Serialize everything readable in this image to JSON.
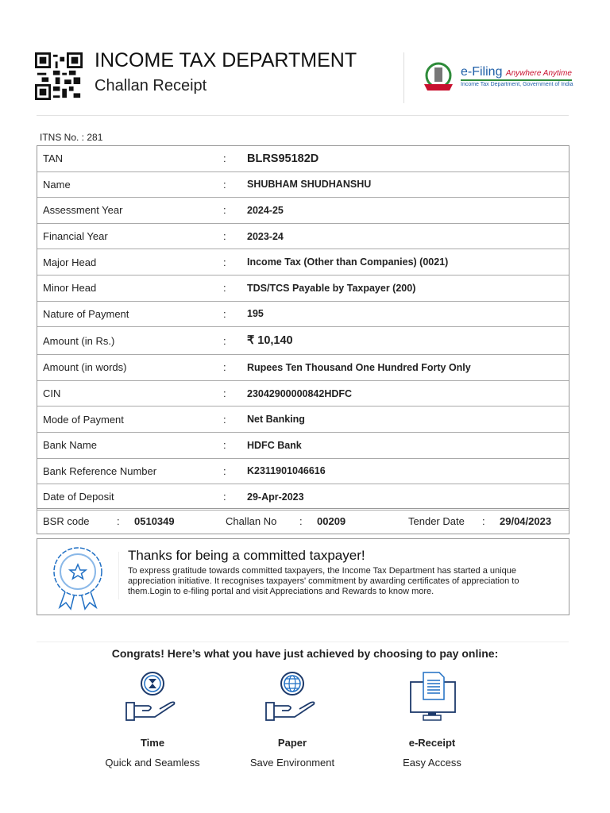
{
  "header": {
    "title": "INCOME TAX DEPARTMENT",
    "subtitle": "Challan Receipt",
    "logo_text": "e-Filing Anywhere Anytime",
    "logo_subtext": "Income Tax Department, Government of India"
  },
  "itns": "ITNS No. : 281",
  "rows": [
    {
      "label": "TAN",
      "value": "BLRS95182D"
    },
    {
      "label": "Name",
      "value": "SHUBHAM SHUDHANSHU"
    },
    {
      "label": "Assessment Year",
      "value": "2024-25"
    },
    {
      "label": "Financial Year",
      "value": "2023-24"
    },
    {
      "label": "Major Head",
      "value": "Income Tax (Other than Companies) (0021)"
    },
    {
      "label": "Minor Head",
      "value": "TDS/TCS Payable by Taxpayer (200)"
    },
    {
      "label": "Nature of Payment",
      "value": "195"
    },
    {
      "label": "Amount (in Rs.)",
      "value": "₹ 10,140"
    },
    {
      "label": "Amount (in words)",
      "value": "Rupees Ten Thousand One Hundred Forty Only"
    },
    {
      "label": "CIN",
      "value": "23042900000842HDFC"
    },
    {
      "label": "Mode of Payment",
      "value": "Net Banking"
    },
    {
      "label": "Bank Name",
      "value": "HDFC Bank"
    },
    {
      "label": "Bank Reference Number",
      "value": "K2311901046616"
    },
    {
      "label": "Date of Deposit",
      "value": "29-Apr-2023"
    }
  ],
  "colon": ":",
  "footer_row": {
    "bsr_label": "BSR code",
    "bsr": "0510349",
    "challan_label": "Challan No",
    "challan": "00209",
    "tender_label": "Tender Date",
    "tender": "29/04/2023"
  },
  "thanks": {
    "title": "Thanks for being a committed taxpayer!",
    "body": "To express gratitude towards committed taxpayers, the Income Tax Department has started a unique appreciation initiative. It recognises taxpayers' commitment by awarding certificates of appreciation to them.Login to e-filing portal and visit Appreciations and Rewards to know more."
  },
  "congrats": "Congrats! Here’s what you have just achieved by choosing to pay online:",
  "features": [
    {
      "title": "Time",
      "subtitle": "Quick and Seamless",
      "icon": "hourglass-hand-icon"
    },
    {
      "title": "Paper",
      "subtitle": "Save Environment",
      "icon": "globe-hand-icon"
    },
    {
      "title": "e-Receipt",
      "subtitle": "Easy Access",
      "icon": "document-monitor-icon"
    }
  ],
  "colors": {
    "accent": "#1f6fc4",
    "navy": "#1d3a6b",
    "green": "#2e8b3a",
    "red": "#c8102e"
  }
}
